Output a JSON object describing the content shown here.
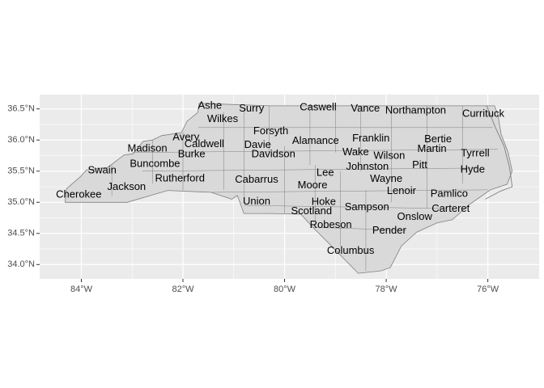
{
  "map": {
    "panel_color": "#ebebeb",
    "grid_color": "#ffffff",
    "land_fill": "#d9d9d9",
    "border_color": "#7f7f7f",
    "x_axis": {
      "ticks": [
        {
          "value": -84,
          "label": "84°W"
        },
        {
          "value": -82,
          "label": "82°W"
        },
        {
          "value": -80,
          "label": "80°W"
        },
        {
          "value": -78,
          "label": "78°W"
        },
        {
          "value": -76,
          "label": "76°W"
        }
      ]
    },
    "y_axis": {
      "ticks": [
        {
          "value": 34.0,
          "label": "34.0°N"
        },
        {
          "value": 34.5,
          "label": "34.5°N"
        },
        {
          "value": 35.0,
          "label": "35.0°N"
        },
        {
          "value": 35.5,
          "label": "35.5°N"
        },
        {
          "value": 36.0,
          "label": "36.0°N"
        },
        {
          "value": 36.5,
          "label": "36.5°N"
        }
      ]
    },
    "counties": [
      {
        "name": "Ashe",
        "lon": -81.47,
        "lat": 36.55
      },
      {
        "name": "Surry",
        "lon": -80.65,
        "lat": 36.5
      },
      {
        "name": "Caswell",
        "lon": -79.34,
        "lat": 36.52
      },
      {
        "name": "Vance",
        "lon": -78.41,
        "lat": 36.5
      },
      {
        "name": "Northampton",
        "lon": -77.42,
        "lat": 36.47
      },
      {
        "name": "Currituck",
        "lon": -76.09,
        "lat": 36.42
      },
      {
        "name": "Wilkes",
        "lon": -81.22,
        "lat": 36.33
      },
      {
        "name": "Forsyth",
        "lon": -80.27,
        "lat": 36.14
      },
      {
        "name": "Avery",
        "lon": -81.94,
        "lat": 36.04
      },
      {
        "name": "Franklin",
        "lon": -78.3,
        "lat": 36.02
      },
      {
        "name": "Bertie",
        "lon": -76.98,
        "lat": 36.01
      },
      {
        "name": "Alamance",
        "lon": -79.39,
        "lat": 35.98
      },
      {
        "name": "Caldwell",
        "lon": -81.58,
        "lat": 35.93
      },
      {
        "name": "Davie",
        "lon": -80.53,
        "lat": 35.92
      },
      {
        "name": "Madison",
        "lon": -82.7,
        "lat": 35.86
      },
      {
        "name": "Martin",
        "lon": -77.1,
        "lat": 35.85
      },
      {
        "name": "Wake",
        "lon": -78.6,
        "lat": 35.8
      },
      {
        "name": "Tyrrell",
        "lon": -76.25,
        "lat": 35.78
      },
      {
        "name": "Burke",
        "lon": -81.83,
        "lat": 35.77
      },
      {
        "name": "Davidson",
        "lon": -80.22,
        "lat": 35.77
      },
      {
        "name": "Wilson",
        "lon": -77.94,
        "lat": 35.74
      },
      {
        "name": "Buncombe",
        "lon": -82.55,
        "lat": 35.61
      },
      {
        "name": "Pitt",
        "lon": -77.34,
        "lat": 35.59
      },
      {
        "name": "Johnston",
        "lon": -78.37,
        "lat": 35.57
      },
      {
        "name": "Hyde",
        "lon": -76.3,
        "lat": 35.52
      },
      {
        "name": "Swain",
        "lon": -83.59,
        "lat": 35.51
      },
      {
        "name": "Lee",
        "lon": -79.2,
        "lat": 35.47
      },
      {
        "name": "Rutherford",
        "lon": -82.06,
        "lat": 35.38
      },
      {
        "name": "Cabarrus",
        "lon": -80.55,
        "lat": 35.36
      },
      {
        "name": "Wayne",
        "lon": -78.0,
        "lat": 35.37
      },
      {
        "name": "Moore",
        "lon": -79.45,
        "lat": 35.27
      },
      {
        "name": "Jackson",
        "lon": -83.11,
        "lat": 35.24
      },
      {
        "name": "Lenoir",
        "lon": -77.7,
        "lat": 35.18
      },
      {
        "name": "Pamlico",
        "lon": -76.76,
        "lat": 35.13
      },
      {
        "name": "Cherokee",
        "lon": -84.05,
        "lat": 35.12
      },
      {
        "name": "Union",
        "lon": -80.55,
        "lat": 35.01
      },
      {
        "name": "Hoke",
        "lon": -79.23,
        "lat": 35.0
      },
      {
        "name": "Sampson",
        "lon": -78.38,
        "lat": 34.92
      },
      {
        "name": "Carteret",
        "lon": -76.73,
        "lat": 34.89
      },
      {
        "name": "Scotland",
        "lon": -79.47,
        "lat": 34.85
      },
      {
        "name": "Onslow",
        "lon": -77.44,
        "lat": 34.76
      },
      {
        "name": "Robeson",
        "lon": -79.09,
        "lat": 34.63
      },
      {
        "name": "Pender",
        "lon": -77.94,
        "lat": 34.54
      },
      {
        "name": "Columbus",
        "lon": -78.7,
        "lat": 34.22
      }
    ]
  }
}
